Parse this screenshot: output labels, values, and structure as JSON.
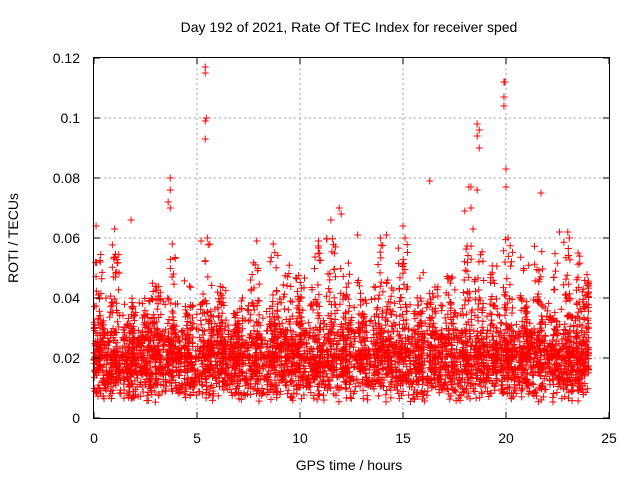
{
  "chart_data": {
    "type": "scatter",
    "title": "Day 192 of 2021, Rate Of TEC Index for receiver sped",
    "xlabel": "GPS time / hours",
    "ylabel": "ROTI / TECUs",
    "xlim": [
      0,
      25
    ],
    "ylim": [
      0,
      0.12
    ],
    "x_ticks": [
      0,
      5,
      10,
      15,
      20,
      25
    ],
    "x_tick_labels": [
      "0",
      "5",
      "10",
      "15",
      "20",
      "25"
    ],
    "y_ticks": [
      0,
      0.02,
      0.04,
      0.06,
      0.08,
      0.1,
      0.12
    ],
    "y_tick_labels": [
      "0",
      "0.02",
      "0.04",
      "0.06",
      "0.08",
      "0.1",
      "0.12"
    ],
    "grid": true,
    "marker": "plus",
    "color": "#ff0000",
    "data_range_hours": [
      0,
      24
    ],
    "baseline_band": [
      0.005,
      0.025
    ],
    "series": [
      {
        "name": "ROTI",
        "notable_points": [
          {
            "x": 0.1,
            "y": 0.064
          },
          {
            "x": 0.3,
            "y": 0.052
          },
          {
            "x": 1.0,
            "y": 0.063
          },
          {
            "x": 1.8,
            "y": 0.066
          },
          {
            "x": 3.7,
            "y": 0.08
          },
          {
            "x": 3.7,
            "y": 0.076
          },
          {
            "x": 3.6,
            "y": 0.072
          },
          {
            "x": 3.7,
            "y": 0.07
          },
          {
            "x": 3.8,
            "y": 0.058
          },
          {
            "x": 5.2,
            "y": 0.059
          },
          {
            "x": 5.4,
            "y": 0.117
          },
          {
            "x": 5.4,
            "y": 0.115
          },
          {
            "x": 5.45,
            "y": 0.1
          },
          {
            "x": 5.4,
            "y": 0.099
          },
          {
            "x": 5.4,
            "y": 0.093
          },
          {
            "x": 5.5,
            "y": 0.06
          },
          {
            "x": 7.9,
            "y": 0.059
          },
          {
            "x": 8.7,
            "y": 0.058
          },
          {
            "x": 10.9,
            "y": 0.059
          },
          {
            "x": 11.5,
            "y": 0.066
          },
          {
            "x": 11.9,
            "y": 0.07
          },
          {
            "x": 12.0,
            "y": 0.068
          },
          {
            "x": 12.8,
            "y": 0.061
          },
          {
            "x": 13.9,
            "y": 0.06
          },
          {
            "x": 14.2,
            "y": 0.061
          },
          {
            "x": 15.0,
            "y": 0.064
          },
          {
            "x": 15.1,
            "y": 0.06
          },
          {
            "x": 16.3,
            "y": 0.079
          },
          {
            "x": 18.0,
            "y": 0.069
          },
          {
            "x": 18.2,
            "y": 0.077
          },
          {
            "x": 18.3,
            "y": 0.077
          },
          {
            "x": 18.3,
            "y": 0.07
          },
          {
            "x": 18.4,
            "y": 0.063
          },
          {
            "x": 18.6,
            "y": 0.098
          },
          {
            "x": 18.7,
            "y": 0.096
          },
          {
            "x": 18.6,
            "y": 0.094
          },
          {
            "x": 18.7,
            "y": 0.09
          },
          {
            "x": 18.6,
            "y": 0.076
          },
          {
            "x": 19.9,
            "y": 0.112
          },
          {
            "x": 19.95,
            "y": 0.112
          },
          {
            "x": 19.9,
            "y": 0.107
          },
          {
            "x": 19.9,
            "y": 0.104
          },
          {
            "x": 20.0,
            "y": 0.083
          },
          {
            "x": 20.0,
            "y": 0.077
          },
          {
            "x": 20.1,
            "y": 0.06
          },
          {
            "x": 21.7,
            "y": 0.075
          },
          {
            "x": 22.6,
            "y": 0.062
          },
          {
            "x": 23.0,
            "y": 0.062
          },
          {
            "x": 23.5,
            "y": 0.055
          },
          {
            "x": 24.0,
            "y": 0.044
          }
        ],
        "bursts": [
          {
            "x": 0.2,
            "top": 0.055
          },
          {
            "x": 1.0,
            "top": 0.058
          },
          {
            "x": 1.8,
            "top": 0.042
          },
          {
            "x": 2.5,
            "top": 0.035
          },
          {
            "x": 3.0,
            "top": 0.046
          },
          {
            "x": 3.8,
            "top": 0.055
          },
          {
            "x": 4.6,
            "top": 0.048
          },
          {
            "x": 5.5,
            "top": 0.058
          },
          {
            "x": 6.2,
            "top": 0.044
          },
          {
            "x": 7.0,
            "top": 0.04
          },
          {
            "x": 7.8,
            "top": 0.055
          },
          {
            "x": 8.7,
            "top": 0.057
          },
          {
            "x": 9.4,
            "top": 0.051
          },
          {
            "x": 10.0,
            "top": 0.048
          },
          {
            "x": 10.8,
            "top": 0.058
          },
          {
            "x": 11.5,
            "top": 0.06
          },
          {
            "x": 12.2,
            "top": 0.052
          },
          {
            "x": 13.0,
            "top": 0.046
          },
          {
            "x": 13.8,
            "top": 0.058
          },
          {
            "x": 14.4,
            "top": 0.052
          },
          {
            "x": 15.0,
            "top": 0.062
          },
          {
            "x": 15.8,
            "top": 0.05
          },
          {
            "x": 16.5,
            "top": 0.044
          },
          {
            "x": 17.3,
            "top": 0.048
          },
          {
            "x": 18.1,
            "top": 0.058
          },
          {
            "x": 18.7,
            "top": 0.056
          },
          {
            "x": 19.4,
            "top": 0.052
          },
          {
            "x": 20.1,
            "top": 0.06
          },
          {
            "x": 20.9,
            "top": 0.054
          },
          {
            "x": 21.6,
            "top": 0.058
          },
          {
            "x": 22.3,
            "top": 0.055
          },
          {
            "x": 23.0,
            "top": 0.06
          },
          {
            "x": 23.6,
            "top": 0.056
          },
          {
            "x": 23.9,
            "top": 0.048
          }
        ]
      }
    ]
  }
}
